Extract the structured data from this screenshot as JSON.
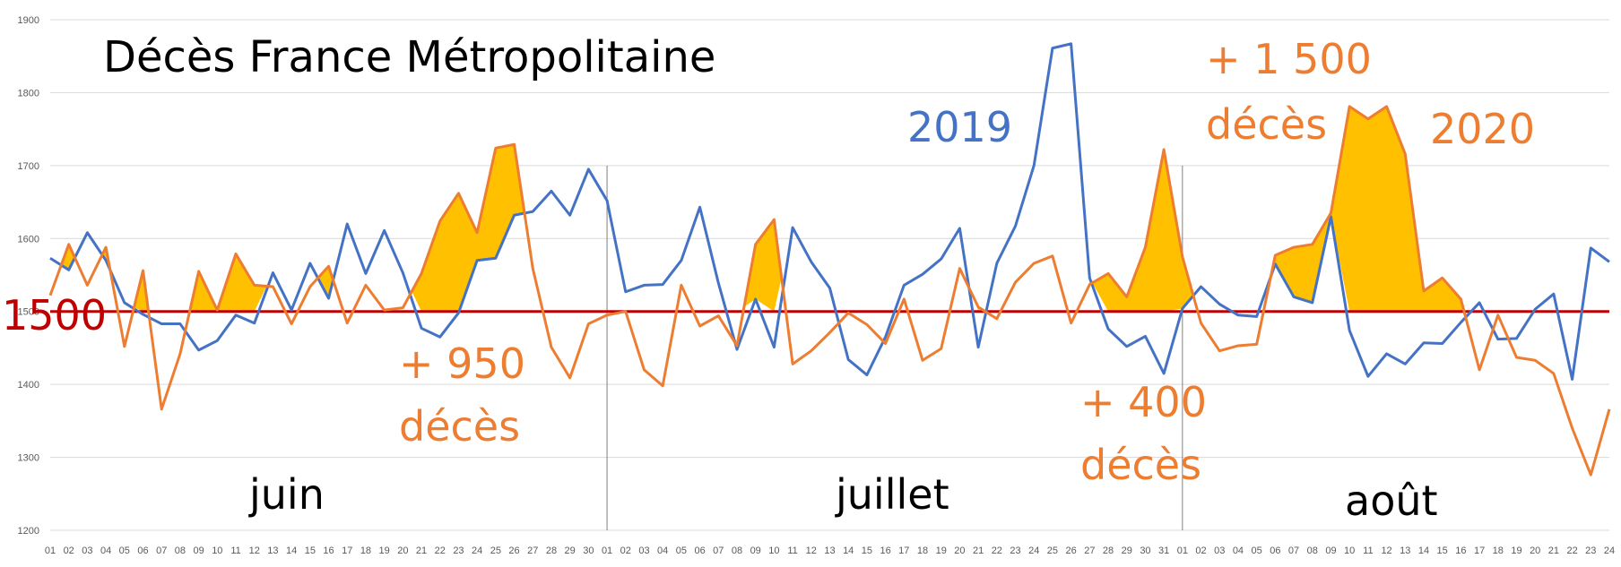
{
  "chart_data": {
    "type": "line",
    "title": "Décès France Métropolitaine",
    "ylim": [
      1200,
      1900
    ],
    "yticks": [
      1200,
      1300,
      1400,
      1500,
      1600,
      1700,
      1800,
      1900
    ],
    "grid": true,
    "x": [
      "01",
      "02",
      "03",
      "04",
      "05",
      "06",
      "07",
      "08",
      "09",
      "10",
      "11",
      "12",
      "13",
      "14",
      "15",
      "16",
      "17",
      "18",
      "19",
      "20",
      "21",
      "22",
      "23",
      "24",
      "25",
      "26",
      "27",
      "28",
      "29",
      "30",
      "01",
      "02",
      "03",
      "04",
      "05",
      "06",
      "07",
      "08",
      "09",
      "10",
      "11",
      "12",
      "13",
      "14",
      "15",
      "16",
      "17",
      "18",
      "19",
      "20",
      "21",
      "22",
      "23",
      "24",
      "25",
      "26",
      "27",
      "28",
      "29",
      "30",
      "31",
      "01",
      "02",
      "03",
      "04",
      "05",
      "06",
      "07",
      "08",
      "09",
      "10",
      "11",
      "12",
      "13",
      "14",
      "15",
      "16",
      "17",
      "18",
      "19",
      "20",
      "21",
      "22",
      "23",
      "24"
    ],
    "months": [
      "juin",
      "juillet",
      "août"
    ],
    "reference": {
      "label": "1500",
      "value": 1500,
      "color": "#C00000"
    },
    "series": [
      {
        "name": "2019",
        "color": "#4472C4",
        "values": [
          1573,
          1557,
          1608,
          1570,
          1512,
          1496,
          1483,
          1483,
          1447,
          1460,
          1495,
          1484,
          1553,
          1502,
          1566,
          1518,
          1620,
          1552,
          1611,
          1553,
          1477,
          1465,
          1498,
          1570,
          1573,
          1632,
          1637,
          1665,
          1632,
          1695,
          1652,
          1527,
          1536,
          1537,
          1570,
          1643,
          1539,
          1448,
          1517,
          1451,
          1615,
          1568,
          1532,
          1434,
          1413,
          1465,
          1536,
          1551,
          1572,
          1614,
          1451,
          1566,
          1617,
          1700,
          1861,
          1867,
          1546,
          1476,
          1452,
          1466,
          1415,
          1504,
          1534,
          1510,
          1495,
          1493,
          1565,
          1520,
          1512,
          1630,
          1474,
          1411,
          1442,
          1428,
          1457,
          1456,
          1485,
          1512,
          1462,
          1463,
          1503,
          1524,
          1407,
          1587,
          1568
        ]
      },
      {
        "name": "2020",
        "color": "#ED7D31",
        "values": [
          1522,
          1592,
          1536,
          1588,
          1452,
          1556,
          1366,
          1442,
          1555,
          1502,
          1579,
          1536,
          1534,
          1483,
          1534,
          1562,
          1484,
          1536,
          1502,
          1505,
          1552,
          1624,
          1662,
          1608,
          1724,
          1729,
          1559,
          1451,
          1409,
          1483,
          1495,
          1500,
          1420,
          1398,
          1536,
          1480,
          1494,
          1453,
          1592,
          1626,
          1428,
          1446,
          1471,
          1498,
          1482,
          1456,
          1517,
          1433,
          1449,
          1559,
          1506,
          1490,
          1540,
          1566,
          1576,
          1484,
          1537,
          1552,
          1520,
          1588,
          1722,
          1575,
          1484,
          1446,
          1453,
          1455,
          1577,
          1588,
          1592,
          1635,
          1781,
          1764,
          1781,
          1716,
          1528,
          1546,
          1517,
          1420,
          1495,
          1437,
          1433,
          1415,
          1340,
          1276,
          1366
        ]
      }
    ],
    "annotations": {
      "series_2019": "2019",
      "series_2020": "2020",
      "peak1": [
        "+ 950",
        "décès"
      ],
      "peak2": [
        "+ 400",
        "décès"
      ],
      "peak3": [
        "+ 1 500",
        "décès"
      ]
    },
    "fill_color": "#FFC000"
  }
}
